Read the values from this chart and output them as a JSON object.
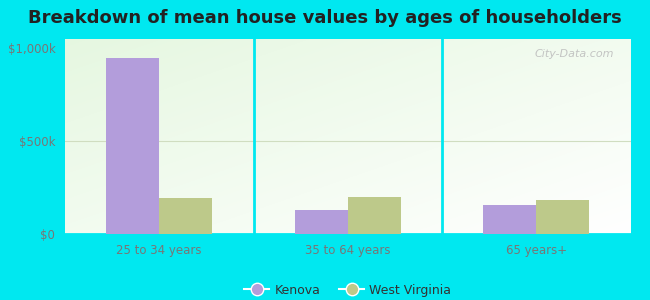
{
  "title": "Breakdown of mean house values by ages of householders",
  "categories": [
    "25 to 34 years",
    "35 to 64 years",
    "65 years+"
  ],
  "kenova_values": [
    950000,
    130000,
    155000
  ],
  "wv_values": [
    195000,
    200000,
    185000
  ],
  "kenova_color": "#b39ddb",
  "wv_color": "#bdc98a",
  "ylim": [
    0,
    1050000
  ],
  "yticks": [
    0,
    500000,
    1000000
  ],
  "ytick_labels": [
    "$0",
    "$500k",
    "$1,000k"
  ],
  "background_outer": "#00e8f0",
  "title_fontsize": 13,
  "bar_width": 0.28,
  "legend_kenova": "Kenova",
  "legend_wv": "West Virginia",
  "watermark": "City-Data.com",
  "tick_color": "#777777",
  "divider_color": "#00e8f0",
  "grid_color": "#d0ddc0"
}
